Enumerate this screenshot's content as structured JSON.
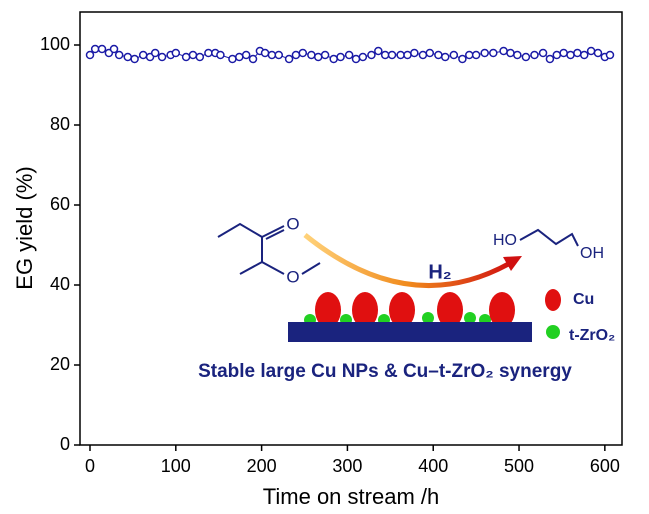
{
  "chart_data": {
    "type": "line",
    "x_label": "Time on stream /h",
    "y_label": "EG yield (%)",
    "x": [
      0,
      6,
      14,
      22,
      28,
      34,
      44,
      52,
      62,
      70,
      76,
      84,
      94,
      100,
      112,
      120,
      128,
      138,
      146,
      152,
      166,
      174,
      182,
      190,
      198,
      204,
      212,
      220,
      232,
      240,
      248,
      258,
      266,
      274,
      284,
      292,
      302,
      310,
      318,
      328,
      336,
      344,
      352,
      362,
      370,
      378,
      388,
      396,
      406,
      414,
      424,
      434,
      442,
      450,
      460,
      470,
      482,
      490,
      498,
      508,
      518,
      528,
      536,
      544,
      552,
      560,
      568,
      576,
      584,
      592,
      600,
      606
    ],
    "series": [
      {
        "color": "#1a1aa6",
        "marker": "open-circle",
        "values": [
          97.5,
          99,
          99,
          98,
          99,
          97.5,
          97,
          96.5,
          97.5,
          97,
          98,
          97,
          97.5,
          98,
          97,
          97.5,
          97,
          98,
          98,
          97.5,
          96.5,
          97,
          97.5,
          96.5,
          98.5,
          98,
          97.5,
          97.5,
          96.5,
          97.5,
          98,
          97.5,
          97,
          97.5,
          96.5,
          97,
          97.5,
          96.5,
          97,
          97.5,
          98.5,
          97.5,
          97.5,
          97.5,
          97.5,
          98,
          97.5,
          98,
          97.5,
          97,
          97.5,
          96.5,
          97.5,
          97.5,
          98,
          98,
          98.5,
          98,
          97.5,
          97,
          97.5,
          98,
          96.5,
          97.5,
          98,
          97.5,
          98,
          97.5,
          98.5,
          98,
          97,
          97.5
        ]
      }
    ],
    "xlim": [
      -11.65,
      620
    ],
    "ylim": [
      0,
      108.25
    ],
    "xticks": [
      0,
      100,
      200,
      300,
      400,
      500,
      600
    ],
    "yticks": [
      0,
      20,
      40,
      60,
      80,
      100
    ],
    "annotations": {
      "reactant_o_top": "O",
      "reactant_o_bottom": "O",
      "reagent": "H₂",
      "product_left": "HO",
      "product_right": "OH",
      "legend_cu": "Cu",
      "legend_zro2": "t-ZrO₂",
      "caption": "Stable large Cu NPs & Cu–t-ZrO₂ synergy"
    }
  }
}
